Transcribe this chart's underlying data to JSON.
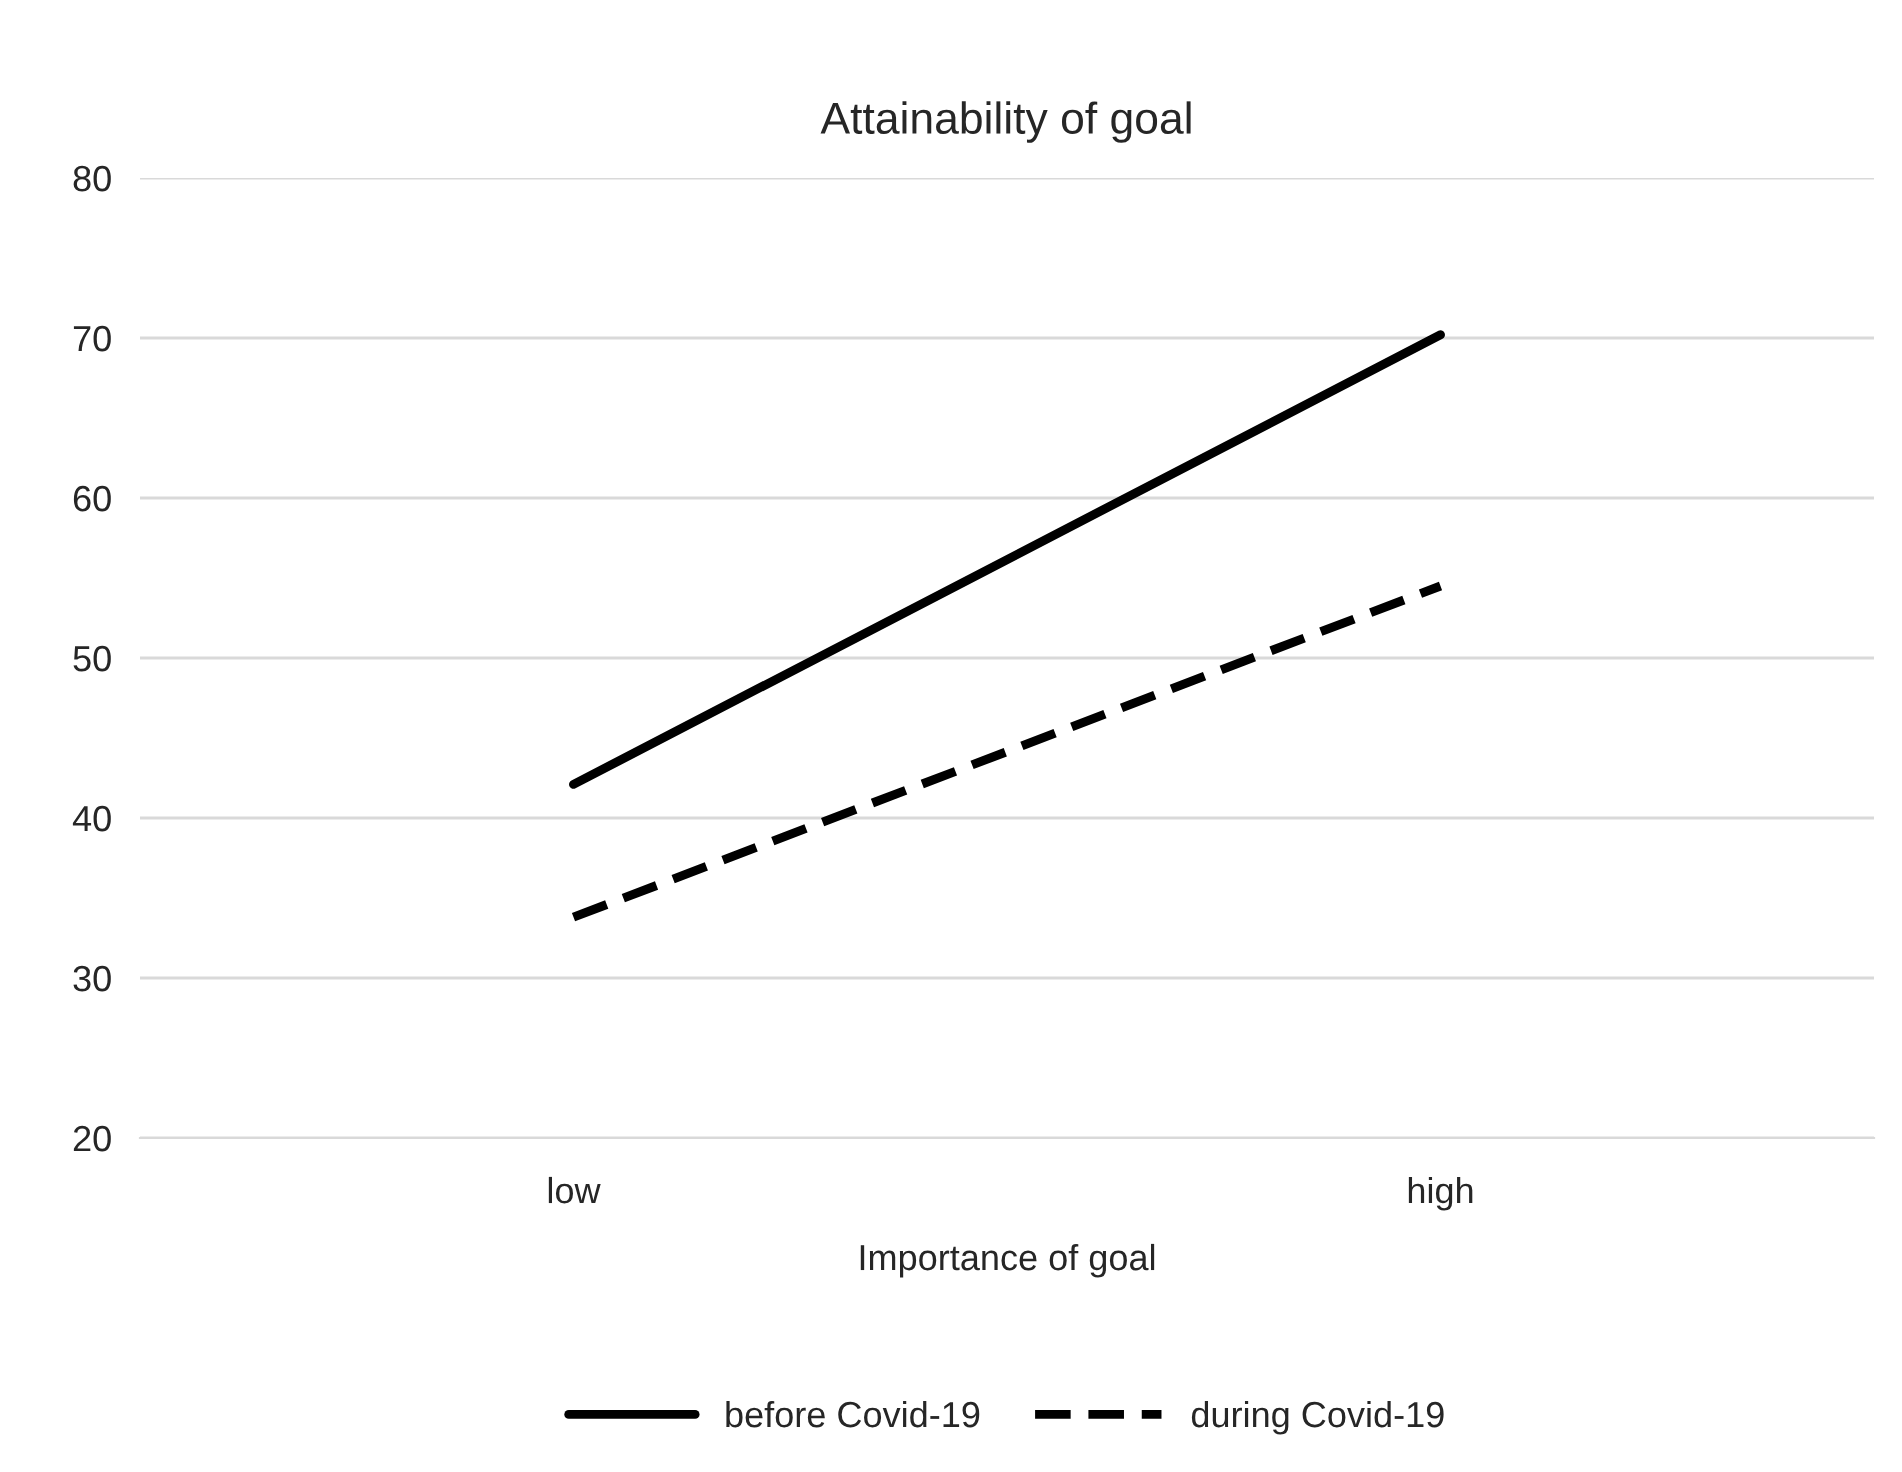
{
  "chart_data": {
    "type": "line",
    "title": "Attainability of goal",
    "xlabel": "Importance of goal",
    "categories": [
      "low",
      "high"
    ],
    "series": [
      {
        "name": "before Covid-19",
        "color": "#000000",
        "values": [
          42.1,
          70.2
        ],
        "line_style": "solid"
      },
      {
        "name": "during Covid-19",
        "color": "#000000",
        "values": [
          33.8,
          54.5
        ],
        "line_style": "dashed"
      }
    ],
    "ylim": [
      20,
      80
    ],
    "yticks": [
      20,
      30,
      40,
      50,
      60,
      70,
      80
    ],
    "grid": "y",
    "legend": "bottom",
    "marker": "none"
  }
}
